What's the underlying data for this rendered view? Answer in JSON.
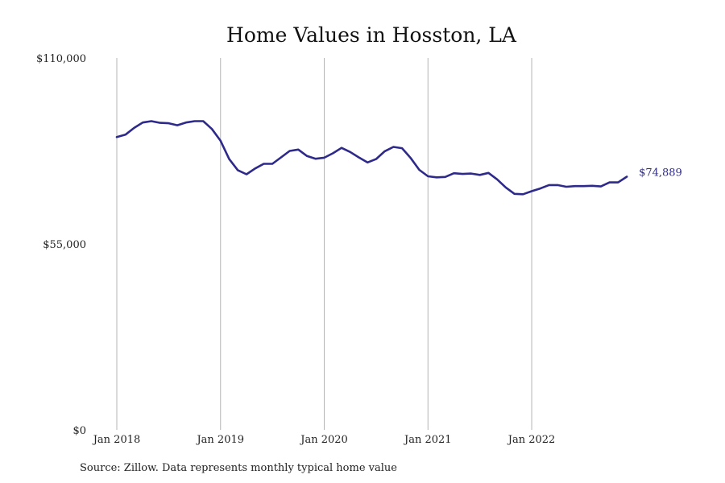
{
  "chart_data": {
    "type": "line",
    "title": "Home Values in Hosston, LA",
    "xlabel": "",
    "ylabel": "",
    "ylim": [
      0,
      110000
    ],
    "yticks": [
      {
        "value": 0,
        "label": "$0"
      },
      {
        "value": 55000,
        "label": "$55,000"
      },
      {
        "value": 110000,
        "label": "$110,000"
      }
    ],
    "xticks": [
      {
        "value": "2018-01",
        "label": "Jan 2018"
      },
      {
        "value": "2019-01",
        "label": "Jan 2019"
      },
      {
        "value": "2020-01",
        "label": "Jan 2020"
      },
      {
        "value": "2021-01",
        "label": "Jan 2021"
      },
      {
        "value": "2022-01",
        "label": "Jan 2022"
      }
    ],
    "grid": "vertical",
    "series": [
      {
        "color": "#2e2a8a",
        "x": [
          "2018-01",
          "2018-02",
          "2018-03",
          "2018-04",
          "2018-05",
          "2018-06",
          "2018-07",
          "2018-08",
          "2018-09",
          "2018-10",
          "2018-11",
          "2018-12",
          "2019-01",
          "2019-02",
          "2019-03",
          "2019-04",
          "2019-05",
          "2019-06",
          "2019-07",
          "2019-08",
          "2019-09",
          "2019-10",
          "2019-11",
          "2019-12",
          "2020-01",
          "2020-02",
          "2020-03",
          "2020-04",
          "2020-05",
          "2020-06",
          "2020-07",
          "2020-08",
          "2020-09",
          "2020-10",
          "2020-11",
          "2020-12",
          "2021-01",
          "2021-02",
          "2021-03",
          "2021-04",
          "2021-05",
          "2021-06",
          "2021-07",
          "2021-08",
          "2021-09",
          "2021-10",
          "2021-11",
          "2021-12",
          "2022-01",
          "2022-02",
          "2022-03",
          "2022-04",
          "2022-05",
          "2022-06",
          "2022-07",
          "2022-08",
          "2022-09",
          "2022-10",
          "2022-11",
          "2022-12"
        ],
        "values": [
          86600,
          87300,
          89300,
          90900,
          91300,
          90800,
          90700,
          90100,
          90900,
          91300,
          91300,
          89000,
          85500,
          80100,
          76800,
          75600,
          77300,
          78700,
          78700,
          80600,
          82500,
          82900,
          81000,
          80200,
          80500,
          81800,
          83400,
          82200,
          80600,
          79100,
          80100,
          82400,
          83700,
          83300,
          80400,
          76900,
          75000,
          74700,
          74800,
          75900,
          75700,
          75800,
          75400,
          76000,
          74100,
          71700,
          69800,
          69700,
          70600,
          71400,
          72400,
          72400,
          71900,
          72100,
          72100,
          72200,
          72000,
          73200,
          73200,
          74889
        ]
      }
    ],
    "end_label": "$74,889"
  },
  "source_note": "Source: Zillow. Data represents monthly typical home value"
}
